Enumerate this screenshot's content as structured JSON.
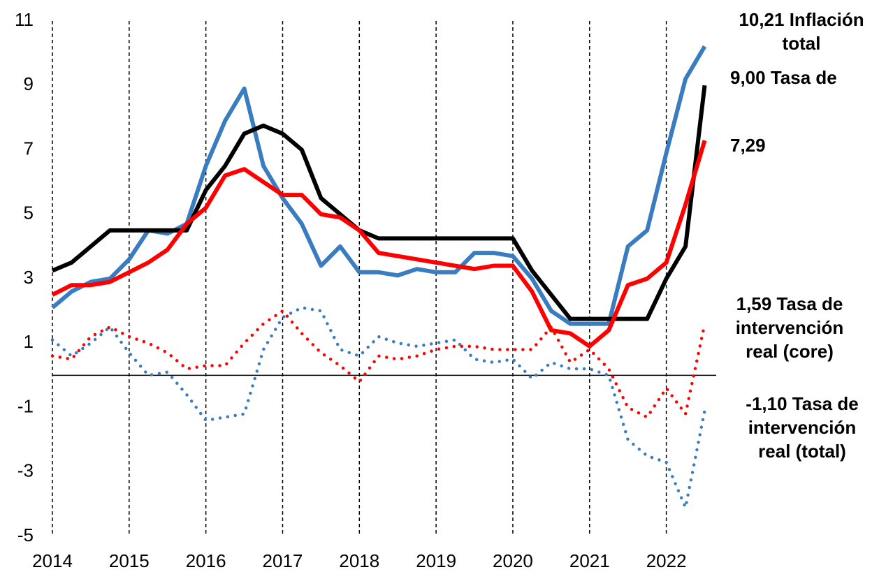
{
  "chart_data": {
    "type": "line",
    "x": [
      2014,
      2014.25,
      2014.5,
      2014.75,
      2015,
      2015.25,
      2015.5,
      2015.75,
      2016,
      2016.25,
      2016.5,
      2016.75,
      2017,
      2017.25,
      2017.5,
      2017.75,
      2018,
      2018.25,
      2018.5,
      2018.75,
      2019,
      2019.25,
      2019.5,
      2019.75,
      2020,
      2020.25,
      2020.5,
      2020.75,
      2021,
      2021.25,
      2021.5,
      2021.75,
      2022,
      2022.25,
      2022.5
    ],
    "xlim": [
      2014,
      2022.65
    ],
    "xticks": [
      2014,
      2015,
      2016,
      2017,
      2018,
      2019,
      2020,
      2021,
      2022
    ],
    "ylim": [
      -5,
      11
    ],
    "yticks": [
      -5,
      -3,
      -1,
      1,
      3,
      5,
      7,
      9,
      11
    ],
    "grid": true,
    "series": [
      {
        "name": "Inflación total",
        "color": "#3a7cc0",
        "style": "solid",
        "end_label": [
          "10,21 Inflación",
          "total"
        ],
        "values": [
          2.1,
          2.6,
          2.9,
          3.0,
          3.6,
          4.5,
          4.4,
          4.7,
          6.5,
          7.9,
          8.9,
          6.5,
          5.5,
          4.7,
          3.4,
          4.0,
          3.2,
          3.2,
          3.1,
          3.3,
          3.2,
          3.2,
          3.8,
          3.8,
          3.7,
          3.0,
          2.0,
          1.6,
          1.6,
          1.6,
          4.0,
          4.5,
          6.9,
          9.2,
          10.21
        ]
      },
      {
        "name": "Tasa de",
        "color": "#000000",
        "style": "solid",
        "end_label": [
          "9,00 Tasa de"
        ],
        "values": [
          3.25,
          3.5,
          4.0,
          4.5,
          4.5,
          4.5,
          4.5,
          4.5,
          5.75,
          6.5,
          7.5,
          7.75,
          7.5,
          7.0,
          5.5,
          5.0,
          4.5,
          4.25,
          4.25,
          4.25,
          4.25,
          4.25,
          4.25,
          4.25,
          4.25,
          3.25,
          2.5,
          1.75,
          1.75,
          1.75,
          1.75,
          1.75,
          3.0,
          4.0,
          9.0
        ]
      },
      {
        "name": "core",
        "color": "#ff0000",
        "style": "solid",
        "end_label": [
          "7,29"
        ],
        "values": [
          2.5,
          2.8,
          2.8,
          2.9,
          3.2,
          3.5,
          3.9,
          4.7,
          5.2,
          6.2,
          6.4,
          6.0,
          5.6,
          5.6,
          5.0,
          4.9,
          4.5,
          3.8,
          3.7,
          3.6,
          3.5,
          3.4,
          3.3,
          3.4,
          3.4,
          2.6,
          1.4,
          1.3,
          0.9,
          1.4,
          2.8,
          3.0,
          3.5,
          5.3,
          7.29
        ]
      },
      {
        "name": "Tasa de intervención real (core)",
        "color": "#ff0000",
        "style": "dotted",
        "end_label": [
          "1,59 Tasa de",
          "intervención",
          "real (core)"
        ],
        "values": [
          0.6,
          0.5,
          1.2,
          1.5,
          1.2,
          1.0,
          0.7,
          0.2,
          0.3,
          0.3,
          1.0,
          1.6,
          2.0,
          1.3,
          0.7,
          0.3,
          -0.2,
          0.6,
          0.5,
          0.6,
          0.8,
          0.9,
          0.9,
          0.8,
          0.8,
          0.8,
          1.5,
          0.4,
          0.8,
          0.2,
          -1.0,
          -1.3,
          -0.4,
          -1.2,
          1.59
        ]
      },
      {
        "name": "Tasa de intervención real (total)",
        "color": "#3a7cc0",
        "style": "dotted",
        "end_label": [
          "-1,10 Tasa de",
          "intervención",
          "real (total)"
        ],
        "values": [
          1.1,
          0.6,
          1.0,
          1.5,
          0.7,
          0.0,
          0.1,
          -0.6,
          -1.4,
          -1.3,
          -1.2,
          0.8,
          1.8,
          2.1,
          2.0,
          0.8,
          0.6,
          1.2,
          1.0,
          0.9,
          1.0,
          1.1,
          0.5,
          0.4,
          0.5,
          -0.1,
          0.4,
          0.2,
          0.2,
          0.0,
          -2.0,
          -2.5,
          -2.7,
          -4.1,
          -1.1
        ]
      }
    ]
  }
}
